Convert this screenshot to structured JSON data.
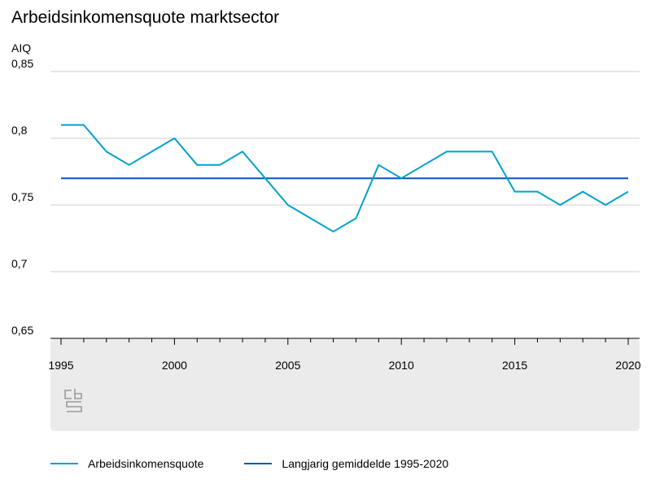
{
  "title": "Arbeidsinkomensquote marktsector",
  "logo_text": "cbs",
  "chart_data": {
    "type": "line",
    "title": "Arbeidsinkomensquote marktsector",
    "ylabel": "AIQ",
    "xlabel": "",
    "x": [
      1995,
      1996,
      1997,
      1998,
      1999,
      2000,
      2001,
      2002,
      2003,
      2004,
      2005,
      2006,
      2007,
      2008,
      2009,
      2010,
      2011,
      2012,
      2013,
      2014,
      2015,
      2016,
      2017,
      2018,
      2019,
      2020
    ],
    "xlim": [
      1995,
      2020
    ],
    "xticks": [
      "1995",
      "2000",
      "2005",
      "2010",
      "2015",
      "2020"
    ],
    "xtick_values": [
      1995,
      2000,
      2005,
      2010,
      2015,
      2020
    ],
    "ylim": [
      0.65,
      0.85
    ],
    "yticks": [
      "0,85",
      "0,8",
      "0,75",
      "0,7",
      "0,65"
    ],
    "ytick_values": [
      0.85,
      0.8,
      0.75,
      0.7,
      0.65
    ],
    "grid": true,
    "legend_position": "bottom",
    "series": [
      {
        "name": "Arbeidsinkomensquote",
        "color": "#00a1cd",
        "values": [
          0.81,
          0.81,
          0.79,
          0.78,
          0.79,
          0.8,
          0.78,
          0.78,
          0.79,
          0.77,
          0.75,
          0.74,
          0.73,
          0.74,
          0.78,
          0.77,
          0.78,
          0.79,
          0.79,
          0.79,
          0.76,
          0.76,
          0.75,
          0.76,
          0.75,
          0.76
        ]
      },
      {
        "name": "Langjarig gemiddelde 1995-2020",
        "color": "#0058b8",
        "values": [
          0.77,
          0.77,
          0.77,
          0.77,
          0.77,
          0.77,
          0.77,
          0.77,
          0.77,
          0.77,
          0.77,
          0.77,
          0.77,
          0.77,
          0.77,
          0.77,
          0.77,
          0.77,
          0.77,
          0.77,
          0.77,
          0.77,
          0.77,
          0.77,
          0.77,
          0.77
        ]
      }
    ]
  }
}
